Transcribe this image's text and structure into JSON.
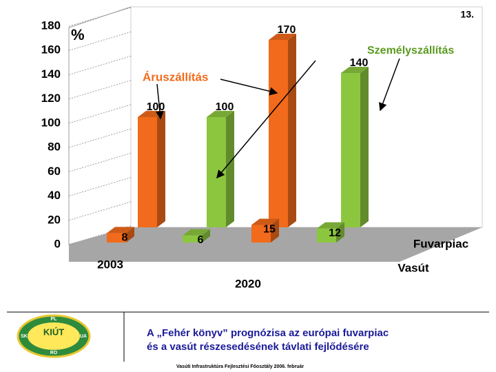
{
  "page_number": "13.",
  "chart_data": {
    "type": "bar3d",
    "unit": "%",
    "ylim": [
      0,
      180
    ],
    "yticks": [
      0,
      20,
      40,
      60,
      80,
      100,
      120,
      140,
      160,
      180
    ],
    "categories": [
      "2003",
      "2020"
    ],
    "rows": [
      "Fuvarpiac",
      "Vasút"
    ],
    "series": [
      {
        "name": "Áruszállítás",
        "color": "#f26a1b",
        "values": [
          [
            100,
            170
          ],
          [
            8,
            15
          ]
        ]
      },
      {
        "name": "Személyszállítás",
        "color": "#8cc63f",
        "values": [
          [
            100,
            140
          ],
          [
            6,
            12
          ]
        ]
      }
    ]
  },
  "caption": [
    "A „Fehér könyv” prognózisa az európai fuvarpiac",
    "és a vasút részesedésének távlati fejlődésére"
  ],
  "footer": "Vasúti Infrastruktúra Fejlesztési Főosztály 2006. február",
  "logo": {
    "title": "KIÚT",
    "top": "PL",
    "left": "SK",
    "right": "UA",
    "bottom": "RO"
  }
}
